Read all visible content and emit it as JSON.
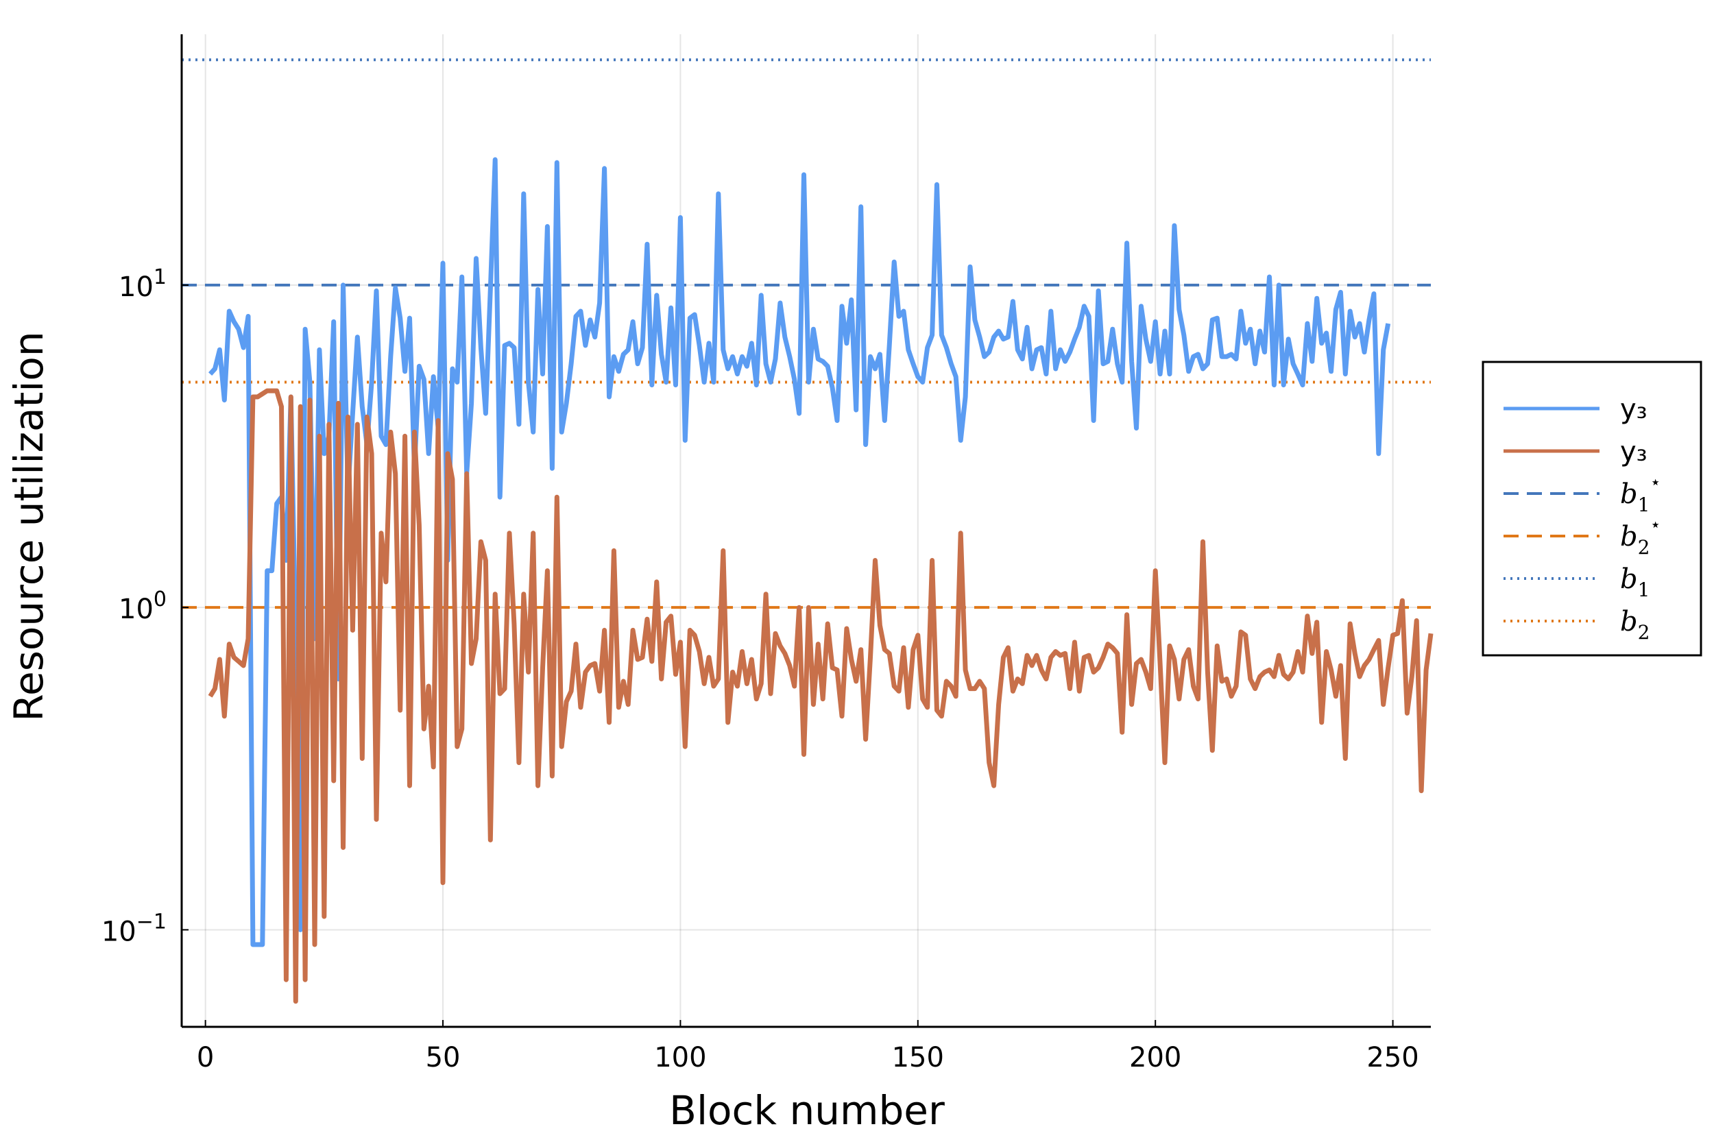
{
  "chart_data": {
    "type": "line",
    "title": "",
    "xlabel": "Block number",
    "ylabel": "Resource utilization",
    "xlim": [
      -5,
      258
    ],
    "ylim": [
      0.05,
      60
    ],
    "yscale": "log",
    "grid": true,
    "legend_position": "outside-right",
    "x_ticks": [
      {
        "value": 0,
        "label": "0"
      },
      {
        "value": 50,
        "label": "50"
      },
      {
        "value": 100,
        "label": "100"
      },
      {
        "value": 150,
        "label": "150"
      },
      {
        "value": 200,
        "label": "200"
      },
      {
        "value": 250,
        "label": "250"
      }
    ],
    "y_ticks": [
      {
        "value": 0.1,
        "base": "10",
        "exp": "−1"
      },
      {
        "value": 1,
        "base": "10",
        "exp": "0"
      },
      {
        "value": 10,
        "base": "10",
        "exp": "1"
      }
    ],
    "series": [
      {
        "name": "y₃",
        "color": "#5b9cf2",
        "style": "solid",
        "x_start": 1,
        "values": [
          5.3,
          5.5,
          6.3,
          4.4,
          8.3,
          7.7,
          7.3,
          6.4,
          8,
          0.09,
          0.09,
          0.09,
          1.3,
          1.3,
          2.1,
          2.2,
          1.4,
          4.5,
          0.8,
          0.1,
          7.3,
          5,
          0.8,
          6.3,
          3,
          3.4,
          7.7,
          0.6,
          10,
          2.3,
          4,
          6.9,
          4.2,
          3.2,
          5,
          9.6,
          3.4,
          3.2,
          6,
          9.8,
          7.9,
          5.4,
          7.9,
          2.7,
          5.6,
          5.1,
          3,
          5.2,
          3.6,
          11.7,
          1.4,
          5.5,
          5,
          10.6,
          2.6,
          4.3,
          12.1,
          6.4,
          4,
          9.7,
          24.5,
          2.2,
          6.5,
          6.6,
          6.4,
          3.7,
          19.2,
          5,
          3.5,
          9.7,
          5.3,
          15.2,
          2.7,
          24,
          3.5,
          4.3,
          5.7,
          8,
          8.3,
          6.5,
          7.8,
          6.9,
          8.8,
          23,
          4.5,
          6,
          5.4,
          6.1,
          6.3,
          7.7,
          5.7,
          6.4,
          13.4,
          4.9,
          9.3,
          6.1,
          5,
          8.5,
          4.9,
          16.2,
          3.3,
          7.9,
          8.1,
          6.5,
          5,
          6.6,
          5,
          19.2,
          6.3,
          5.5,
          6,
          5.3,
          6,
          5.6,
          6.6,
          4.9,
          9.3,
          5.7,
          5,
          5.9,
          8.8,
          6.9,
          6,
          5.1,
          4,
          22,
          5,
          7.3,
          5.9,
          5.8,
          5.6,
          4.8,
          3.8,
          8.6,
          6.6,
          9,
          4.1,
          17.5,
          3.2,
          6,
          5.5,
          6.1,
          3.8,
          6.5,
          11.8,
          8,
          8.3,
          6.3,
          5.7,
          5.2,
          5,
          6.4,
          7,
          20.5,
          7,
          6.4,
          5.7,
          5.2,
          3.3,
          4.5,
          11.4,
          7.8,
          6.9,
          6,
          6.2,
          6.9,
          7.2,
          6.8,
          6.9,
          8.9,
          6.3,
          5.9,
          7.4,
          5.5,
          6.3,
          6.4,
          5.3,
          8.3,
          5.5,
          6.3,
          5.8,
          6.2,
          6.8,
          7.4,
          8.6,
          8,
          3.8,
          9.6,
          5.7,
          5.8,
          7.3,
          5.7,
          5,
          13.5,
          5.8,
          3.6,
          8.6,
          6.8,
          5.8,
          7.7,
          5.3,
          7.2,
          5.3,
          15.3,
          8.4,
          7,
          5.4,
          6,
          6.1,
          5.5,
          5.7,
          7.8,
          7.9,
          6,
          6,
          6.1,
          5.9,
          8.3,
          6.6,
          7.3,
          5.7,
          7.2,
          6.2,
          10.6,
          4.9,
          10,
          4.9,
          6.8,
          5.7,
          5.3,
          4.9,
          7.6,
          5.8,
          9.1,
          6.6,
          7.1,
          5.4,
          8.4,
          9.5,
          5.3,
          8.3,
          6.9,
          7.6,
          6.2,
          7.8,
          9.4,
          3,
          6.3,
          7.6
        ]
      },
      {
        "name": "y₃",
        "color": "#c8704a",
        "style": "solid",
        "x_start": 1,
        "values": [
          0.53,
          0.56,
          0.69,
          0.46,
          0.77,
          0.7,
          0.68,
          0.66,
          0.8,
          4.5,
          4.5,
          4.6,
          4.7,
          4.7,
          4.7,
          4.2,
          0.07,
          4.5,
          0.06,
          4.2,
          0.07,
          4.4,
          0.09,
          3.4,
          0.11,
          3.7,
          0.29,
          4.3,
          0.18,
          3.9,
          0.85,
          3.7,
          0.34,
          3.9,
          3,
          0.22,
          1.7,
          1.2,
          3.5,
          2.6,
          0.48,
          3.4,
          0.28,
          3.5,
          1.8,
          0.42,
          0.57,
          0.32,
          3.8,
          0.14,
          3,
          2.5,
          0.37,
          0.42,
          2.6,
          0.67,
          0.8,
          1.6,
          1.4,
          0.19,
          1.1,
          0.54,
          0.56,
          1.7,
          0.89,
          0.33,
          1.1,
          0.63,
          1.7,
          0.28,
          0.65,
          1.3,
          0.3,
          2.2,
          0.37,
          0.51,
          0.55,
          0.77,
          0.49,
          0.63,
          0.66,
          0.67,
          0.55,
          0.85,
          0.44,
          1.5,
          0.49,
          0.59,
          0.5,
          0.85,
          0.69,
          0.7,
          0.92,
          0.68,
          1.2,
          0.6,
          0.9,
          0.94,
          0.62,
          0.78,
          0.37,
          0.85,
          0.82,
          0.73,
          0.58,
          0.7,
          0.57,
          0.6,
          1.5,
          0.44,
          0.63,
          0.57,
          0.73,
          0.58,
          0.69,
          0.52,
          0.58,
          1.1,
          0.54,
          0.83,
          0.76,
          0.72,
          0.66,
          0.57,
          1,
          0.35,
          1,
          0.5,
          0.77,
          0.52,
          0.89,
          0.65,
          0.64,
          0.46,
          0.86,
          0.69,
          0.59,
          0.74,
          0.39,
          0.7,
          1.4,
          0.88,
          0.74,
          0.72,
          0.57,
          0.55,
          0.75,
          0.49,
          0.74,
          0.82,
          0.52,
          0.49,
          1.4,
          0.48,
          0.46,
          0.59,
          0.57,
          0.53,
          1.7,
          0.64,
          0.56,
          0.56,
          0.59,
          0.56,
          0.33,
          0.28,
          0.5,
          0.7,
          0.75,
          0.55,
          0.6,
          0.58,
          0.71,
          0.66,
          0.71,
          0.64,
          0.6,
          0.7,
          0.73,
          0.71,
          0.72,
          0.56,
          0.78,
          0.55,
          0.7,
          0.71,
          0.63,
          0.65,
          0.7,
          0.77,
          0.75,
          0.72,
          0.41,
          0.95,
          0.5,
          0.67,
          0.69,
          0.63,
          0.56,
          1.3,
          0.67,
          0.33,
          0.76,
          0.69,
          0.52,
          0.69,
          0.74,
          0.57,
          0.52,
          1.6,
          0.63,
          0.36,
          0.76,
          0.59,
          0.6,
          0.53,
          0.57,
          0.84,
          0.82,
          0.6,
          0.56,
          0.61,
          0.63,
          0.64,
          0.61,
          0.71,
          0.62,
          0.6,
          0.63,
          0.73,
          0.63,
          0.94,
          0.72,
          0.9,
          0.44,
          0.73,
          0.64,
          0.53,
          0.66,
          0.34,
          0.89,
          0.72,
          0.61,
          0.66,
          0.69,
          0.74,
          0.79,
          0.5,
          0.65,
          0.82,
          0.83,
          1.05,
          0.47,
          0.61,
          0.91,
          0.27,
          0.64,
          0.83
        ]
      }
    ],
    "reference_lines": [
      {
        "name": "b1*",
        "label_base": "b",
        "label_sub": "1",
        "label_sup": "⋆",
        "value": 10,
        "color": "#4477bb",
        "style": "dashed"
      },
      {
        "name": "b2*",
        "label_base": "b",
        "label_sub": "2",
        "label_sup": "⋆",
        "value": 1,
        "color": "#e07818",
        "style": "dashed"
      },
      {
        "name": "b1",
        "label_base": "b",
        "label_sub": "1",
        "label_sup": "",
        "value": 50,
        "color": "#4477bb",
        "style": "dotted"
      },
      {
        "name": "b2",
        "label_base": "b",
        "label_sub": "2",
        "label_sup": "",
        "value": 5,
        "color": "#e07818",
        "style": "dotted"
      }
    ]
  }
}
